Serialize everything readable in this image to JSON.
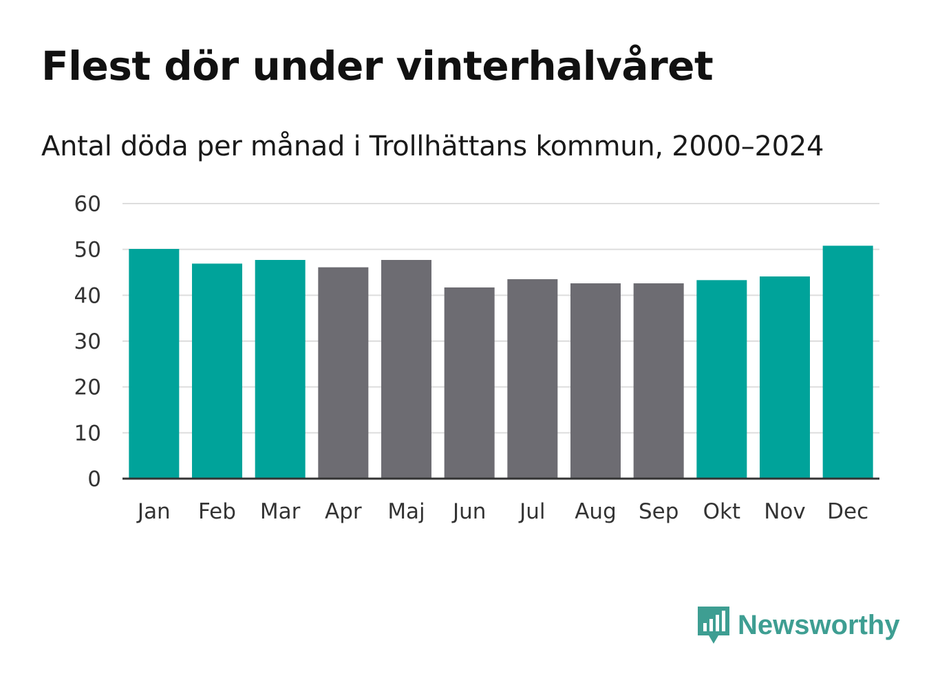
{
  "chart_data": {
    "type": "bar",
    "title": "Flest dör under vinterhalvåret",
    "subtitle": "Antal döda per månad i Trollhättans kommun, 2000–2024",
    "categories": [
      "Jan",
      "Feb",
      "Mar",
      "Apr",
      "Maj",
      "Jun",
      "Jul",
      "Aug",
      "Sep",
      "Okt",
      "Nov",
      "Dec"
    ],
    "values": [
      50.1,
      46.9,
      47.7,
      46.1,
      47.7,
      41.7,
      43.5,
      42.6,
      42.6,
      43.3,
      44.1,
      50.8
    ],
    "highlight": [
      true,
      true,
      true,
      false,
      false,
      false,
      false,
      false,
      false,
      true,
      true,
      true
    ],
    "ylim": [
      0,
      60
    ],
    "yticks": [
      0,
      10,
      20,
      30,
      40,
      50,
      60
    ],
    "xlabel": "",
    "ylabel": "",
    "grid": true
  },
  "colors": {
    "highlight": "#00a39a",
    "default": "#6d6c72",
    "grid": "#dddddd",
    "axis": "#333333",
    "brand": "#3e9e92"
  },
  "brand": {
    "name": "Newsworthy",
    "icon": "newsworthy-logo-icon"
  }
}
